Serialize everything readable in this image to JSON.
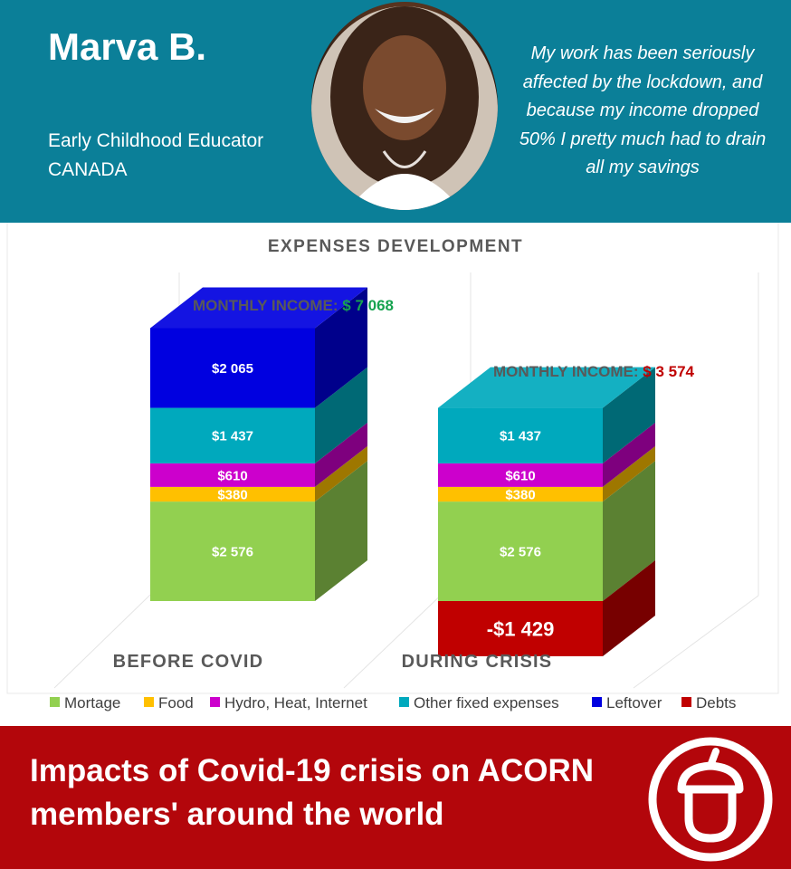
{
  "profile": {
    "name": "Marva B.",
    "job": "Early Childhood Educator",
    "country": "CANADA",
    "quote_lines": [
      "My work has been seriously",
      "affected by the lockdown, and",
      "because my income dropped",
      "50% I pretty much had to drain",
      "all my savings"
    ],
    "avatar_icon": "person-photo"
  },
  "chart_data": {
    "type": "bar",
    "stacked": true,
    "title": "EXPENSES DEVELOPMENT",
    "categories": [
      "BEFORE COVID",
      "DURING CRISIS"
    ],
    "income_label": "MONTHLY INCOME:",
    "income_values": [
      "$ 7 068",
      "$ 3 574"
    ],
    "income_colors": [
      "#17a350",
      "#c00000"
    ],
    "series": [
      {
        "name": "Mortage",
        "color": "#92d050",
        "values": [
          2576,
          2576
        ],
        "labels": [
          "$2 576",
          "$2 576"
        ]
      },
      {
        "name": "Food",
        "color": "#ffc000",
        "values": [
          380,
          380
        ],
        "labels": [
          "$380",
          "$380"
        ]
      },
      {
        "name": "Hydro, Heat, Internet",
        "color": "#cc00cc",
        "values": [
          610,
          610
        ],
        "labels": [
          "$610",
          "$610"
        ]
      },
      {
        "name": "Other fixed expenses",
        "color": "#00a9bd",
        "values": [
          1437,
          1437
        ],
        "labels": [
          "$1 437",
          "$1 437"
        ]
      },
      {
        "name": "Leftover",
        "color": "#0000e0",
        "values": [
          2065,
          0
        ],
        "labels": [
          "$2 065",
          ""
        ]
      },
      {
        "name": "Debts",
        "color": "#c00000",
        "values": [
          0,
          -1429
        ],
        "labels": [
          "",
          "-$1 429"
        ]
      }
    ],
    "legend_position": "bottom",
    "grid": false
  },
  "footer": {
    "title": "Impacts of Covid-19 crisis on ACORN members' around the world",
    "logo_icon": "acorn-logo"
  }
}
